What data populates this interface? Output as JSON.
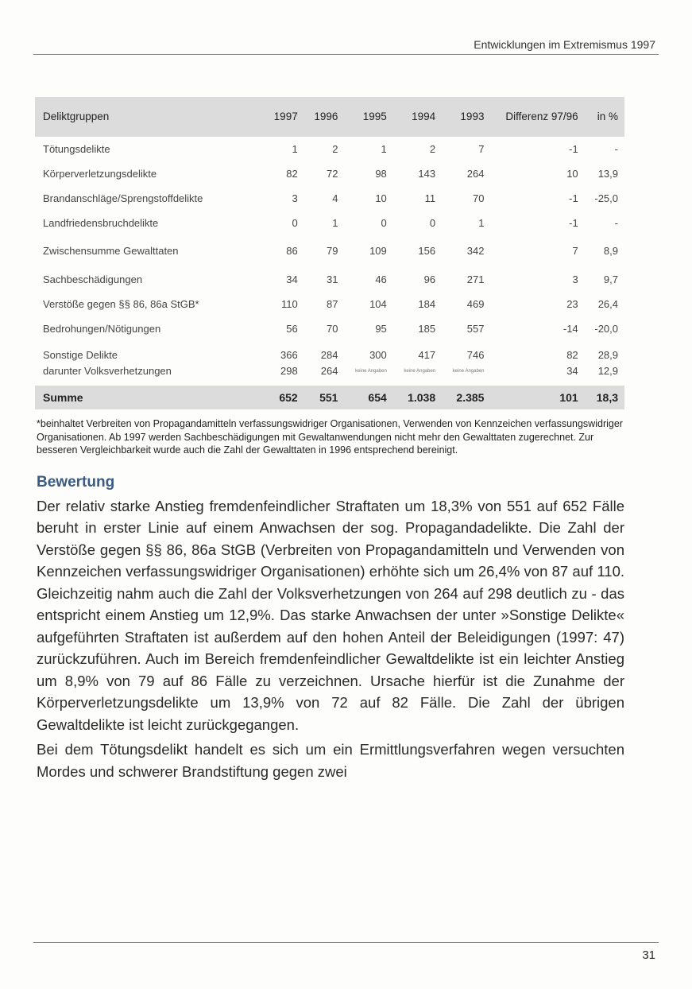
{
  "running_head": "Entwicklungen im Extremismus 1997",
  "table": {
    "headers": [
      "Deliktgruppen",
      "1997",
      "1996",
      "1995",
      "1994",
      "1993",
      "Differenz 97/96",
      "in %"
    ],
    "rows": [
      {
        "label": "Tötungsdelikte",
        "values": [
          "1",
          "2",
          "1",
          "2",
          "7",
          "-1",
          "-"
        ]
      },
      {
        "label": "Körperverletzungsdelikte",
        "values": [
          "82",
          "72",
          "98",
          "143",
          "264",
          "10",
          "13,9"
        ]
      },
      {
        "label": "Brandanschläge/Sprengstoffdelikte",
        "values": [
          "3",
          "4",
          "10",
          "11",
          "70",
          "-1",
          "-25,0"
        ]
      },
      {
        "label": "Landfriedensbruchdelikte",
        "values": [
          "0",
          "1",
          "0",
          "0",
          "1",
          "-1",
          "-"
        ]
      },
      {
        "label": "Zwischensumme Gewalttaten",
        "values": [
          "86",
          "79",
          "109",
          "156",
          "342",
          "7",
          "8,9"
        ]
      },
      {
        "label": "Sachbeschädigungen",
        "values": [
          "34",
          "31",
          "46",
          "96",
          "271",
          "3",
          "9,7"
        ]
      },
      {
        "label": "Verstöße gegen §§ 86, 86a StGB*",
        "values": [
          "110",
          "87",
          "104",
          "184",
          "469",
          "23",
          "26,4"
        ]
      },
      {
        "label": "Bedrohungen/Nötigungen",
        "values": [
          "56",
          "70",
          "95",
          "185",
          "557",
          "-14",
          "-20,0"
        ]
      },
      {
        "label": "Sonstige Delikte",
        "values": [
          "366",
          "284",
          "300",
          "417",
          "746",
          "82",
          "28,9"
        ]
      },
      {
        "label": "darunter Volksverhetzungen",
        "values": [
          "298",
          "264",
          "keine Angaben",
          "keine Angaben",
          "keine Angaben",
          "34",
          "12,9"
        ]
      }
    ],
    "total": {
      "label": "Summe",
      "values": [
        "652",
        "551",
        "654",
        "1.038",
        "2.385",
        "101",
        "18,3"
      ]
    }
  },
  "footnote": "*beinhaltet Verbreiten von Propagandamitteln verfassungswidriger Organisationen, Verwenden von Kennzeichen verfassungswidriger Organisationen. Ab 1997 werden Sachbeschädigungen mit Gewaltanwendungen nicht mehr den Gewalttaten zugerechnet. Zur besseren Vergleichbarkeit wurde auch die Zahl der Gewalttaten in 1996 entsprechend bereinigt.",
  "heading": "Bewertung",
  "paragraphs": [
    "Der relativ starke Anstieg fremdenfeindlicher Straftaten um 18,3% von 551 auf 652 Fälle beruht in erster Linie auf einem Anwachsen der sog. Propagandadelikte. Die Zahl der Verstöße gegen §§ 86, 86a StGB (Verbreiten von Propagandamitteln und Verwenden von Kennzeichen verfassungswidriger Organisationen) erhöhte sich um 26,4% von 87 auf 110. Gleichzeitig nahm auch die Zahl der Volksverhetzungen von 264 auf 298 deutlich zu - das entspricht einem Anstieg um 12,9%. Das starke Anwachsen der unter »Sonstige Delikte« aufgeführten Straftaten ist außerdem auf den hohen Anteil der Beleidigungen (1997: 47) zurückzuführen. Auch im Bereich fremdenfeindlicher Gewaltdelikte ist ein leichter Anstieg um 8,9% von 79 auf 86 Fälle zu verzeichnen. Ursache hierfür ist die Zunahme der Körperverletzungsdelikte um 13,9% von 72 auf 82 Fälle. Die Zahl der übrigen Gewaltdelikte ist leicht zurückgegangen.",
    "Bei dem Tötungsdelikt handelt es sich um ein Ermittlungsverfahren wegen versuchten Mordes und schwerer Brandstiftung gegen zwei"
  ],
  "page_number": "31"
}
